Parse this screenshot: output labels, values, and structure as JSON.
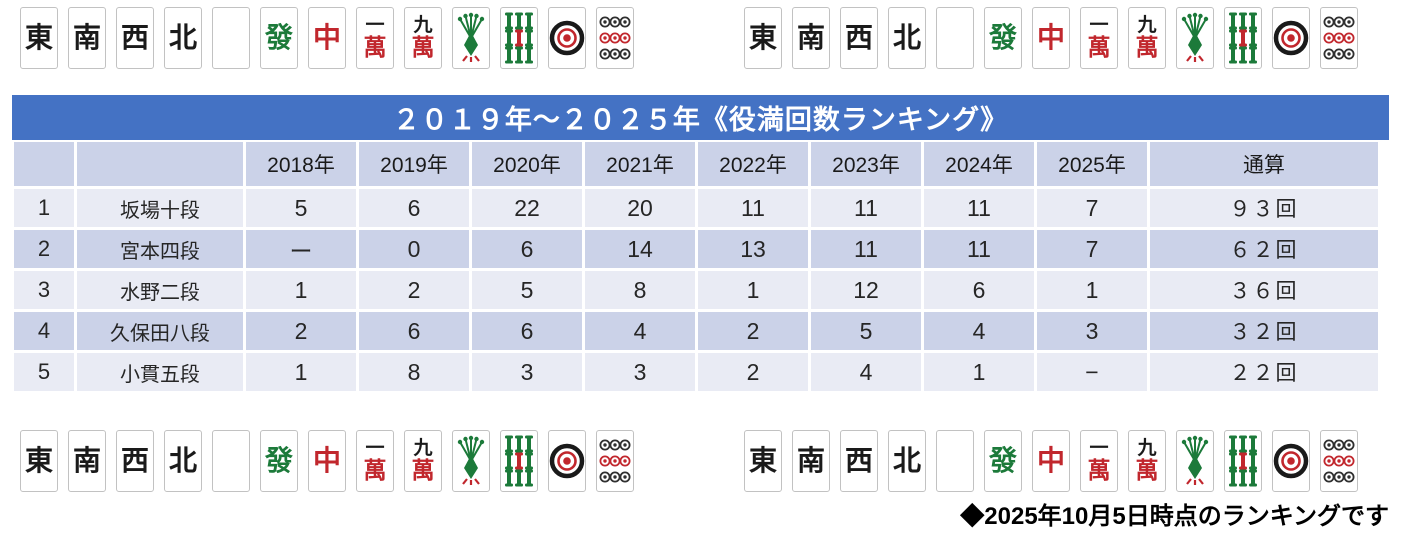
{
  "title": "２０１９年～２０２５年《役満回数ランキング》",
  "footer_note": "◆2025年10月5日時点のランキングです",
  "colors": {
    "title_bar": "#4472C4",
    "header_row": "#CBD2E8",
    "row_light": "#E9EBF4",
    "row_dark": "#CBD2E8",
    "black": "#1a1a1a",
    "green": "#1c7a3a",
    "red": "#c1272d",
    "pin_dark": "#2f2f2f"
  },
  "table": {
    "headers": [
      "",
      "",
      "2018年",
      "2019年",
      "2020年",
      "2021年",
      "2022年",
      "2023年",
      "2024年",
      "2025年",
      "通算"
    ],
    "rows": [
      {
        "rank": "1",
        "name": "坂場十段",
        "values": [
          "5",
          "6",
          "22",
          "20",
          "11",
          "11",
          "11",
          "7"
        ],
        "total": "９３回"
      },
      {
        "rank": "2",
        "name": "宮本四段",
        "values": [
          "ー",
          "0",
          "6",
          "14",
          "13",
          "11",
          "11",
          "7"
        ],
        "total": "６２回"
      },
      {
        "rank": "3",
        "name": "水野二段",
        "values": [
          "1",
          "2",
          "5",
          "8",
          "1",
          "12",
          "6",
          "1"
        ],
        "total": "３６回"
      },
      {
        "rank": "4",
        "name": "久保田八段",
        "values": [
          "2",
          "6",
          "6",
          "4",
          "2",
          "5",
          "4",
          "3"
        ],
        "total": "３２回"
      },
      {
        "rank": "5",
        "name": "小貫五段",
        "values": [
          "1",
          "8",
          "3",
          "3",
          "2",
          "4",
          "1",
          "−"
        ],
        "total": "２２回"
      }
    ]
  },
  "tiles": {
    "sequence": [
      {
        "name": "east-wind",
        "type": "char",
        "char": "東",
        "color": "black"
      },
      {
        "name": "south-wind",
        "type": "char",
        "char": "南",
        "color": "black"
      },
      {
        "name": "west-wind",
        "type": "char",
        "char": "西",
        "color": "black"
      },
      {
        "name": "north-wind",
        "type": "char",
        "char": "北",
        "color": "black"
      },
      {
        "name": "white-dragon",
        "type": "blank"
      },
      {
        "name": "green-dragon",
        "type": "char",
        "char": "發",
        "color": "green"
      },
      {
        "name": "red-dragon",
        "type": "char",
        "char": "中",
        "color": "red"
      },
      {
        "name": "one-man",
        "type": "man",
        "top": "一",
        "bottom": "萬"
      },
      {
        "name": "nine-man",
        "type": "man",
        "top": "九",
        "bottom": "萬"
      },
      {
        "name": "one-sou",
        "type": "sou1"
      },
      {
        "name": "nine-sou",
        "type": "sou9"
      },
      {
        "name": "one-pin",
        "type": "pin1"
      },
      {
        "name": "nine-pin",
        "type": "pin9"
      }
    ]
  },
  "chart_data": {
    "type": "table",
    "title": "２０１９年～２０２５年《役満回数ランキング》",
    "categories": [
      "2018年",
      "2019年",
      "2020年",
      "2021年",
      "2022年",
      "2023年",
      "2024年",
      "2025年"
    ],
    "series": [
      {
        "rank": 1,
        "name": "坂場十段",
        "values": [
          5,
          6,
          22,
          20,
          11,
          11,
          11,
          7
        ],
        "total": 93
      },
      {
        "rank": 2,
        "name": "宮本四段",
        "values": [
          null,
          0,
          6,
          14,
          13,
          11,
          11,
          7
        ],
        "total": 62
      },
      {
        "rank": 3,
        "name": "水野二段",
        "values": [
          1,
          2,
          5,
          8,
          1,
          12,
          6,
          1
        ],
        "total": 36
      },
      {
        "rank": 4,
        "name": "久保田八段",
        "values": [
          2,
          6,
          6,
          4,
          2,
          5,
          4,
          3
        ],
        "total": 32
      },
      {
        "rank": 5,
        "name": "小貫五段",
        "values": [
          1,
          8,
          3,
          3,
          2,
          4,
          1,
          null
        ],
        "total": 22
      }
    ],
    "note": "◆2025年10月5日時点のランキングです"
  }
}
